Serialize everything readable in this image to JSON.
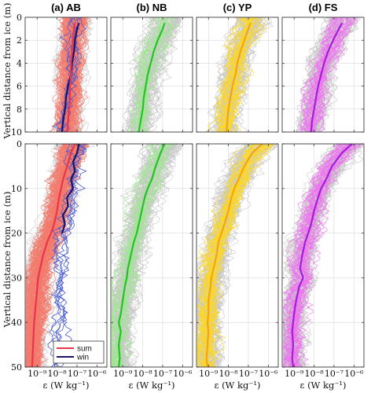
{
  "chart_data": {
    "type": "line",
    "ylabel": "Vertical distance from ice (m)",
    "xlabel": "ε (W kg⁻¹)",
    "xscale": "log",
    "xlim_exp": [
      -9.6,
      -5.5
    ],
    "xticks": [
      {
        "exp": -9,
        "label": "10⁻⁹"
      },
      {
        "exp": -8,
        "label": "10⁻⁸"
      },
      {
        "exp": -7,
        "label": "10⁻⁷"
      },
      {
        "exp": -6,
        "label": "10⁻⁶"
      }
    ],
    "grid": true,
    "legend": {
      "placement": "bottom-left of panel (a), lower row",
      "entries": [
        {
          "label": "sum",
          "color": "#e8354b"
        },
        {
          "label": "win",
          "color": "#1b1464"
        }
      ]
    },
    "panels": [
      {
        "id": "a",
        "title": "(a) AB",
        "mean_color": "#e8354b",
        "thin_color": "#f47a6d",
        "win_color": "#1b1464",
        "win_thin_color": "#4a5bd1",
        "top_mean": {
          "depth": [
            0.5,
            1,
            2,
            3,
            4,
            5,
            6,
            7,
            8,
            9,
            10
          ],
          "log_eps": [
            -7.1,
            -7.15,
            -7.2,
            -7.25,
            -7.3,
            -7.3,
            -7.35,
            -7.35,
            -7.4,
            -7.45,
            -7.5
          ]
        },
        "top_win": {
          "depth": [
            0.5,
            1,
            2,
            3,
            4,
            5,
            6,
            7,
            8,
            9,
            10
          ],
          "log_eps": [
            -6.9,
            -7.0,
            -7.1,
            -7.15,
            -7.25,
            -7.3,
            -7.45,
            -7.55,
            -7.6,
            -7.7,
            -7.75
          ]
        },
        "bottom_mean": {
          "depth": [
            0,
            2,
            5,
            8,
            10,
            12,
            15,
            18,
            20,
            22,
            25,
            28,
            30,
            35,
            40,
            45,
            50
          ],
          "log_eps": [
            -7.1,
            -7.3,
            -7.5,
            -7.7,
            -7.8,
            -7.9,
            -8.0,
            -8.15,
            -8.3,
            -8.5,
            -8.7,
            -8.85,
            -8.95,
            -9.05,
            -9.15,
            -9.2,
            -9.25
          ]
        },
        "bottom_win": {
          "depth": [
            0,
            2,
            4,
            6,
            8,
            10,
            12,
            14,
            16,
            18,
            20
          ],
          "log_eps": [
            -6.9,
            -7.0,
            -7.2,
            -7.1,
            -7.3,
            -7.2,
            -7.5,
            -7.45,
            -7.7,
            -7.6,
            -7.75
          ]
        }
      },
      {
        "id": "b",
        "title": "(b) NB",
        "mean_color": "#22c322",
        "thin_color": "#98ec88",
        "top_mean": {
          "depth": [
            0.5,
            1,
            2,
            3,
            4,
            5,
            6,
            7,
            8,
            9,
            10
          ],
          "log_eps": [
            -6.9,
            -7.0,
            -7.25,
            -7.45,
            -7.6,
            -7.75,
            -7.85,
            -7.95,
            -8.0,
            -8.1,
            -8.2
          ]
        },
        "bottom_mean": {
          "depth": [
            0,
            2,
            5,
            8,
            10,
            12,
            15,
            18,
            20,
            22,
            25,
            28,
            30,
            32,
            35,
            38,
            40,
            42,
            45,
            48,
            50
          ],
          "log_eps": [
            -6.9,
            -7.1,
            -7.35,
            -7.55,
            -7.75,
            -7.9,
            -8.05,
            -8.2,
            -8.3,
            -8.45,
            -8.6,
            -8.75,
            -8.8,
            -8.9,
            -9.0,
            -9.1,
            -9.2,
            -9.1,
            -9.2,
            -9.15,
            -9.2
          ]
        }
      },
      {
        "id": "c",
        "title": "(c) YP",
        "mean_color": "#f5a316",
        "thin_color": "#ffd81f",
        "top_mean": {
          "depth": [
            0.5,
            1,
            2,
            3,
            4,
            5,
            6,
            7,
            8,
            9,
            10
          ],
          "log_eps": [
            -6.9,
            -7.0,
            -7.2,
            -7.4,
            -7.55,
            -7.65,
            -7.8,
            -7.9,
            -8.0,
            -8.05,
            -8.1
          ]
        },
        "bottom_mean": {
          "depth": [
            0,
            2,
            5,
            8,
            10,
            12,
            15,
            18,
            20,
            22,
            25,
            28,
            30,
            32,
            35,
            38,
            40,
            42,
            45,
            48,
            50
          ],
          "log_eps": [
            -6.3,
            -6.8,
            -7.2,
            -7.5,
            -7.7,
            -7.85,
            -8.0,
            -8.2,
            -8.35,
            -8.5,
            -8.6,
            -8.75,
            -8.85,
            -8.9,
            -9.0,
            -9.0,
            -9.05,
            -9.0,
            -9.05,
            -9.1,
            -9.05
          ]
        }
      },
      {
        "id": "d",
        "title": "(d) FS",
        "mean_color": "#a020d4",
        "thin_color": "#f072f2",
        "top_mean": {
          "depth": [
            0.5,
            1,
            2,
            3,
            4,
            5,
            6,
            7,
            8,
            9,
            10
          ],
          "log_eps": [
            -6.6,
            -6.75,
            -7.05,
            -7.3,
            -7.5,
            -7.65,
            -7.8,
            -7.9,
            -8.0,
            -8.1,
            -8.15
          ]
        },
        "bottom_mean": {
          "depth": [
            0,
            2,
            5,
            8,
            10,
            12,
            15,
            18,
            20,
            22,
            25,
            28,
            30,
            32,
            35,
            38,
            40,
            42,
            45,
            48,
            50
          ],
          "log_eps": [
            -6.1,
            -6.6,
            -7.1,
            -7.4,
            -7.65,
            -7.8,
            -8.0,
            -8.15,
            -8.3,
            -8.45,
            -8.6,
            -8.7,
            -8.55,
            -8.75,
            -8.9,
            -9.0,
            -9.05,
            -9.1,
            -9.05,
            -9.1,
            -9.05
          ]
        }
      }
    ],
    "rows": [
      {
        "ylim": [
          10,
          0
        ],
        "yticks": [
          2,
          4,
          6,
          8,
          10
        ],
        "ytick_labels": [
          "2",
          "4",
          "6",
          "8",
          "10"
        ]
      },
      {
        "ylim": [
          50,
          0
        ],
        "yticks": [
          0,
          10,
          20,
          30,
          40,
          50
        ],
        "ytick_labels": [
          "0",
          "10",
          "20",
          "30",
          "40",
          "50"
        ]
      }
    ],
    "row_top_first_label": "0"
  }
}
